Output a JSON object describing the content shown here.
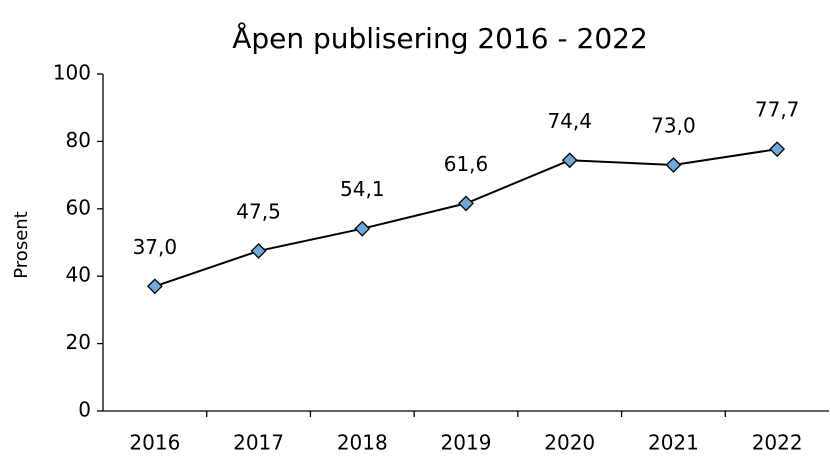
{
  "chart_data": {
    "type": "line",
    "title": "Åpen publisering 2016 - 2022",
    "y_label": "Prosent",
    "categories": [
      "2016",
      "2017",
      "2018",
      "2019",
      "2020",
      "2021",
      "2022"
    ],
    "values": [
      37.0,
      47.5,
      54.1,
      61.6,
      74.4,
      73.0,
      77.7
    ],
    "value_labels": [
      "37,0",
      "47,5",
      "54,1",
      "61,6",
      "74,4",
      "73,0",
      "77,7"
    ],
    "color": "#000000",
    "marker_color": "#6fa8dc",
    "ylim": [
      0,
      100
    ],
    "yticks": [
      0,
      20,
      40,
      60,
      80,
      100
    ],
    "grid": false
  }
}
